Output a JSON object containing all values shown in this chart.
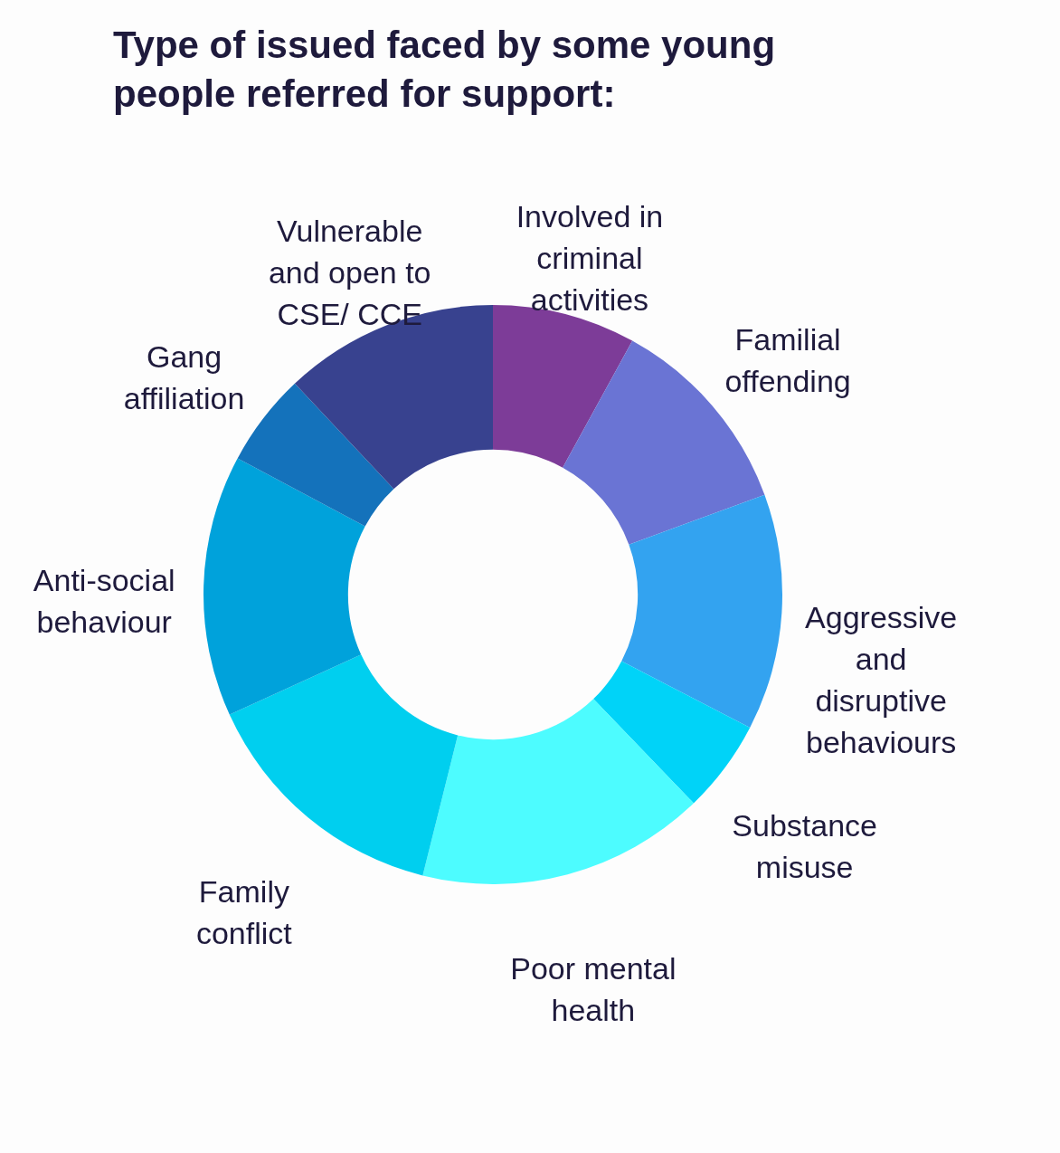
{
  "chart_data": {
    "type": "donut",
    "title": "Type of issued faced by some young people referred for support:",
    "categories": [
      "Involved in criminal activities",
      "Familial offending",
      "Aggressive and disruptive behaviours",
      "Substance misuse",
      "Poor mental health",
      "Family conflict",
      "Anti-social behaviour",
      "Gang affiliation",
      "Vulnerable and open to CSE/ CCE"
    ],
    "values": [
      8,
      11.4,
      13.2,
      5.2,
      16.1,
      14.3,
      14.6,
      5.2,
      12.0
    ],
    "colors": [
      "#7d3c98",
      "#6a74d4",
      "#33a3f0",
      "#00d3f8",
      "#4dfcff",
      "#00cfef",
      "#00a2db",
      "#1472bb",
      "#38428f"
    ]
  }
}
